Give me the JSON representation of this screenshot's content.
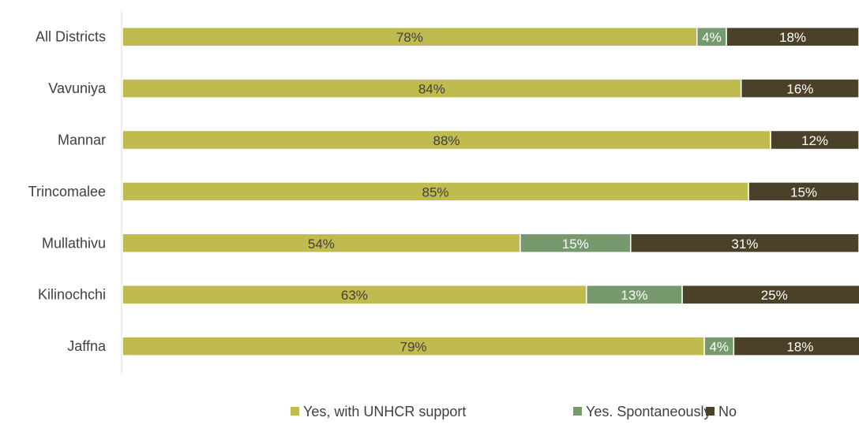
{
  "chart_data": {
    "type": "bar",
    "orientation": "horizontal",
    "stacked": true,
    "value_format": "percent",
    "xlim": [
      0,
      100
    ],
    "grid": false,
    "legend_position": "bottom",
    "categories": [
      "All Districts",
      "Vavuniya",
      "Mannar",
      "Trincomalee",
      "Mullathivu",
      "Kilinochchi",
      "Jaffna"
    ],
    "series": [
      {
        "name": "Yes, with UNHCR support",
        "color": "#BFBB4E",
        "label_color": "#404040",
        "values": [
          78,
          84,
          88,
          85,
          54,
          63,
          79
        ]
      },
      {
        "name": "Yes. Spontaneously",
        "color": "#769A6D",
        "label_color": "#FFFFFF",
        "values": [
          4,
          0,
          0,
          0,
          15,
          13,
          4
        ]
      },
      {
        "name": "No",
        "color": "#4B4128",
        "label_color": "#FFFFFF",
        "values": [
          18,
          16,
          12,
          15,
          31,
          25,
          18
        ]
      }
    ]
  }
}
